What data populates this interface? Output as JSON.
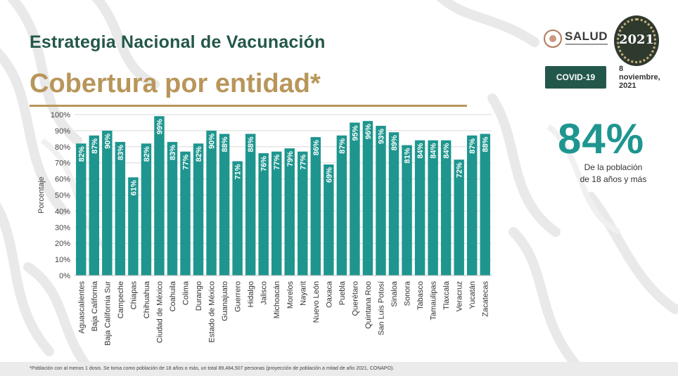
{
  "header": {
    "title": "Estrategia Nacional de Vacunación",
    "subtitle": "Cobertura por entidad*"
  },
  "logos": {
    "salud": "SALUD",
    "year_badge": "2021"
  },
  "badge": {
    "label": "COVID-19"
  },
  "date": {
    "day": "8",
    "month": "noviembre,",
    "year": "2021"
  },
  "summary": {
    "value": "84%",
    "line1": "De la población",
    "line2": "de 18 años y más"
  },
  "footnote": "*Población con al menos 1 dosis. Se toma como población de 18 años o más, un total 89,484,507 personas (proyección de población a mitad de año 2021, CONAPO).",
  "colors": {
    "bar": "#1e968f",
    "title": "#24574b",
    "accent": "#b8965a"
  },
  "chart_data": {
    "type": "bar",
    "ylabel": "Porcentaje",
    "ylim": [
      0,
      100
    ],
    "yticks": [
      "0%",
      "10%",
      "20%",
      "30%",
      "40%",
      "50%",
      "60%",
      "70%",
      "80%",
      "90%",
      "100%"
    ],
    "grid": true,
    "categories": [
      "Aguascalientes",
      "Baja California",
      "Baja California Sur",
      "Campeche",
      "Chiapas",
      "Chihuahua",
      "Ciudad de México",
      "Coahuila",
      "Colima",
      "Durango",
      "Estado de México",
      "Guanajuato",
      "Guerrero",
      "Hidalgo",
      "Jalisco",
      "Michoacán",
      "Morelos",
      "Nayarit",
      "Nuevo León",
      "Oaxaca",
      "Puebla",
      "Querétaro",
      "Quintana Roo",
      "San Luis Potosí",
      "Sinaloa",
      "Sonora",
      "Tabasco",
      "Tamaulipas",
      "Tlaxcala",
      "Veracruz",
      "Yucatán",
      "Zacatecas"
    ],
    "values": [
      82,
      87,
      90,
      83,
      61,
      82,
      99,
      83,
      77,
      82,
      90,
      88,
      71,
      88,
      76,
      77,
      79,
      77,
      86,
      69,
      87,
      95,
      96,
      93,
      89,
      81,
      84,
      84,
      84,
      72,
      87,
      88
    ],
    "labels": [
      "82%",
      "87%",
      "90%",
      "83%",
      "61%",
      "82%",
      "99%",
      "83%",
      "77%",
      "82%",
      "90%",
      "88%",
      "71%",
      "88%",
      "76%",
      "77%",
      "79%",
      "77%",
      "86%",
      "69%",
      "87%",
      "95%",
      "96%",
      "93%",
      "89%",
      "81%",
      "84%",
      "84%",
      "84%",
      "72%",
      "87%",
      "88%"
    ]
  }
}
